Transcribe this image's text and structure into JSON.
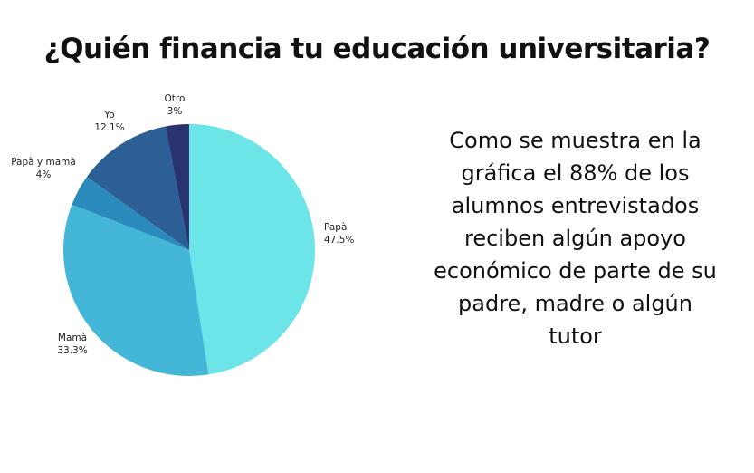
{
  "chart_data": {
    "type": "pie",
    "title": "¿Quién financia tu educación universitaria?",
    "categories": [
      "Papà",
      "Mamà",
      "Papà y mamà",
      "Yo",
      "Otro"
    ],
    "values": [
      47.5,
      33.3,
      4,
      12.1,
      3
    ],
    "value_labels": [
      "47.5%",
      "33.3%",
      "4%",
      "12.1%",
      "3%"
    ],
    "colors": [
      "#6ce4e8",
      "#44b6d8",
      "#2c8bbd",
      "#2b5f96",
      "#283370"
    ],
    "start_angle": "top",
    "direction": "clockwise",
    "legend": "none"
  },
  "annotation": {
    "text": "Como se muestra en la gráfica el 88% de los alumnos entrevistados reciben algún apoyo económico de parte de su padre, madre o algún tutor"
  }
}
